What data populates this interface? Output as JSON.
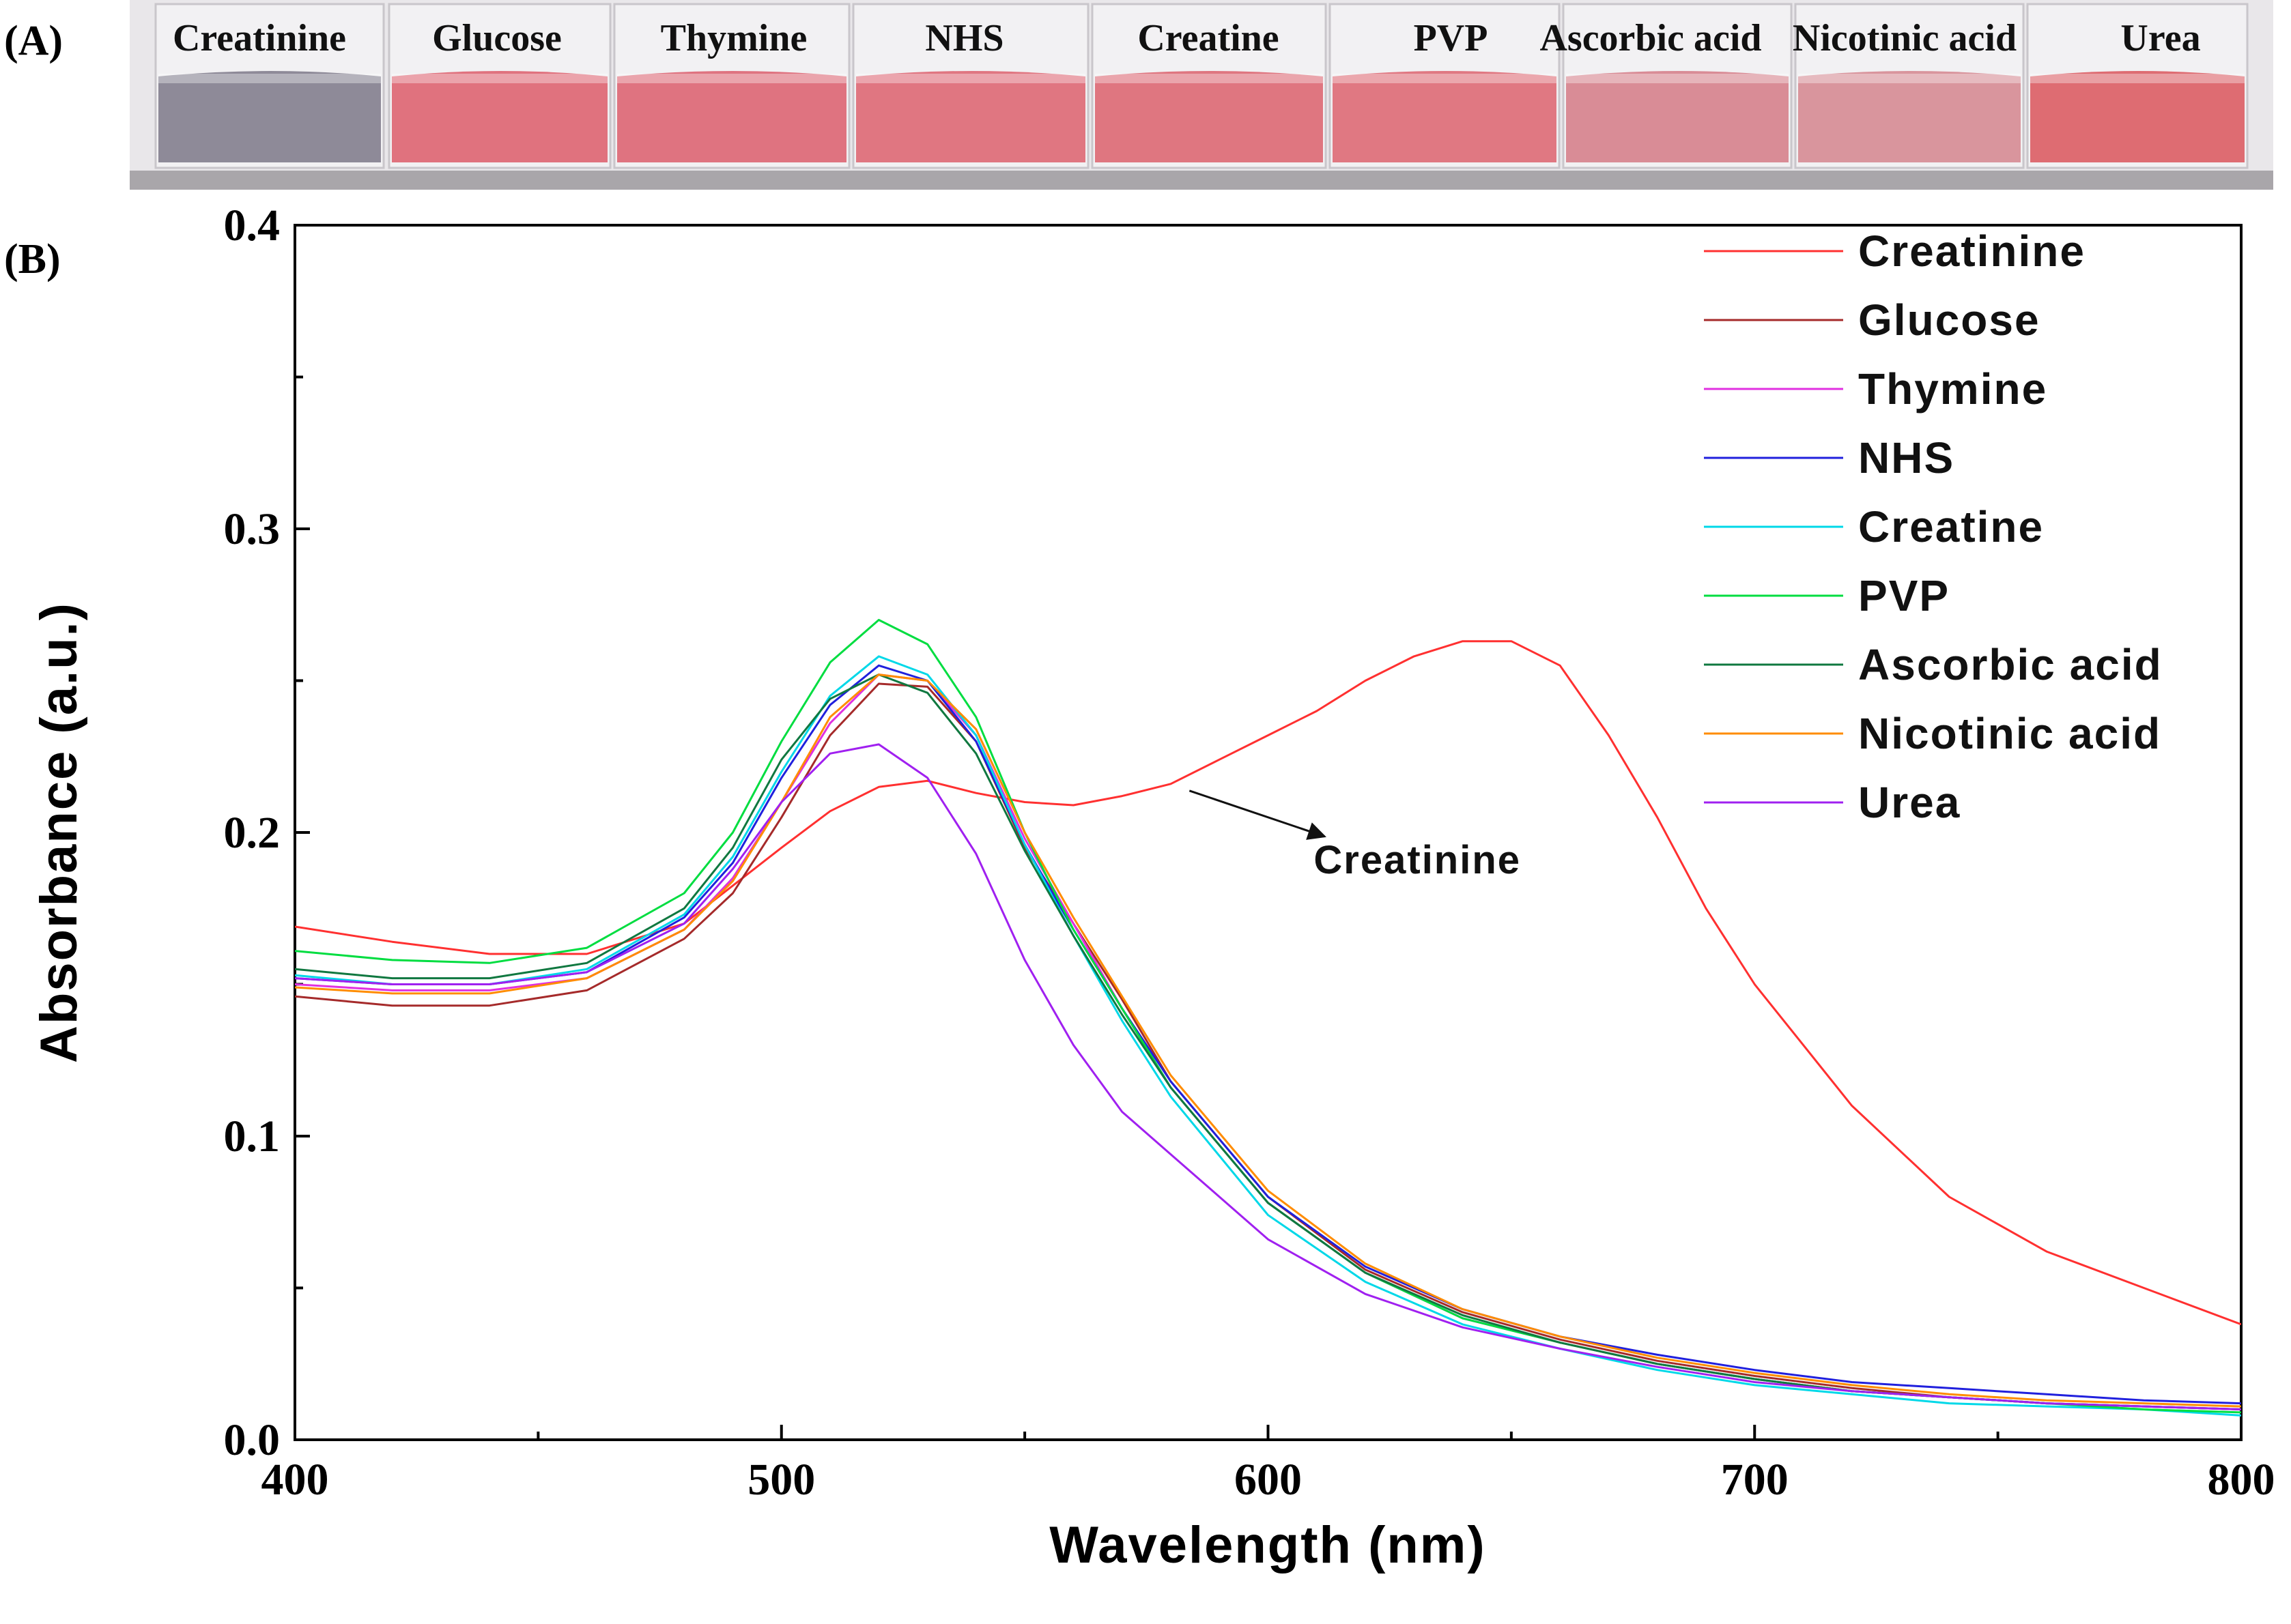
{
  "panel_a": {
    "label": "(A)",
    "vials": [
      {
        "name": "Creatinine",
        "color": "#8e8a98"
      },
      {
        "name": "Glucose",
        "color": "#e0727e"
      },
      {
        "name": "Thymine",
        "color": "#df7380"
      },
      {
        "name": "NHS",
        "color": "#e07681"
      },
      {
        "name": "Creatine",
        "color": "#df7680"
      },
      {
        "name": "PVP",
        "color": "#e07882"
      },
      {
        "name": "Ascorbic acid",
        "color": "#d98c96"
      },
      {
        "name": "Nicotinic acid",
        "color": "#d9959d"
      },
      {
        "name": "Urea",
        "color": "#de6c72"
      }
    ]
  },
  "chart_data": {
    "type": "line",
    "panel_label": "(B)",
    "xlabel": "Wavelength (nm)",
    "ylabel": "Absorbance (a.u.)",
    "xlim": [
      400,
      800
    ],
    "ylim": [
      0.0,
      0.4
    ],
    "xticks": [
      400,
      500,
      600,
      700,
      800
    ],
    "yticks": [
      0.0,
      0.1,
      0.2,
      0.3,
      0.4
    ],
    "ytick_labels": [
      "0.0",
      "0.1",
      "0.2",
      "0.3",
      "0.4"
    ],
    "legend_position": "top-right",
    "annotation": {
      "text": "Creatinine",
      "target": [
        583,
        0.216
      ],
      "text_at": [
        615,
        0.187
      ]
    },
    "series": [
      {
        "name": "Creatinine",
        "color": "#ff3030",
        "x": [
          400,
          420,
          440,
          460,
          480,
          500,
          510,
          520,
          530,
          540,
          550,
          560,
          570,
          580,
          590,
          600,
          610,
          620,
          630,
          640,
          650,
          660,
          670,
          680,
          690,
          700,
          720,
          740,
          760,
          780,
          800
        ],
        "y": [
          0.169,
          0.164,
          0.16,
          0.16,
          0.17,
          0.195,
          0.207,
          0.215,
          0.217,
          0.213,
          0.21,
          0.209,
          0.212,
          0.216,
          0.224,
          0.232,
          0.24,
          0.25,
          0.258,
          0.263,
          0.263,
          0.255,
          0.232,
          0.205,
          0.175,
          0.15,
          0.11,
          0.08,
          0.062,
          0.05,
          0.038
        ]
      },
      {
        "name": "Glucose",
        "color": "#a52a2a",
        "x": [
          400,
          420,
          440,
          460,
          480,
          490,
          500,
          510,
          520,
          530,
          540,
          550,
          560,
          570,
          580,
          600,
          620,
          640,
          660,
          680,
          700,
          720,
          740,
          760,
          780,
          800
        ],
        "y": [
          0.146,
          0.143,
          0.143,
          0.148,
          0.165,
          0.18,
          0.205,
          0.232,
          0.249,
          0.248,
          0.23,
          0.195,
          0.17,
          0.145,
          0.118,
          0.08,
          0.056,
          0.042,
          0.033,
          0.026,
          0.021,
          0.017,
          0.014,
          0.012,
          0.011,
          0.01
        ]
      },
      {
        "name": "Thymine",
        "color": "#e030e0",
        "x": [
          400,
          420,
          440,
          460,
          480,
          490,
          500,
          510,
          520,
          530,
          540,
          550,
          560,
          570,
          580,
          600,
          620,
          640,
          660,
          680,
          700,
          720,
          740,
          760,
          780,
          800
        ],
        "y": [
          0.15,
          0.148,
          0.148,
          0.152,
          0.168,
          0.185,
          0.21,
          0.236,
          0.252,
          0.25,
          0.232,
          0.198,
          0.17,
          0.142,
          0.116,
          0.078,
          0.055,
          0.04,
          0.032,
          0.025,
          0.02,
          0.016,
          0.014,
          0.012,
          0.011,
          0.01
        ]
      },
      {
        "name": "NHS",
        "color": "#2020dd",
        "x": [
          400,
          420,
          440,
          460,
          480,
          490,
          500,
          510,
          520,
          530,
          540,
          550,
          560,
          570,
          580,
          600,
          620,
          640,
          660,
          680,
          700,
          720,
          740,
          760,
          780,
          800
        ],
        "y": [
          0.152,
          0.15,
          0.15,
          0.154,
          0.172,
          0.19,
          0.218,
          0.242,
          0.255,
          0.25,
          0.23,
          0.196,
          0.168,
          0.142,
          0.118,
          0.08,
          0.057,
          0.043,
          0.034,
          0.028,
          0.023,
          0.019,
          0.017,
          0.015,
          0.013,
          0.012
        ]
      },
      {
        "name": "Creatine",
        "color": "#00d8e8",
        "x": [
          400,
          420,
          440,
          460,
          480,
          490,
          500,
          510,
          520,
          530,
          540,
          550,
          560,
          570,
          580,
          600,
          620,
          640,
          660,
          680,
          700,
          720,
          740,
          760,
          780,
          800
        ],
        "y": [
          0.153,
          0.15,
          0.15,
          0.155,
          0.173,
          0.192,
          0.22,
          0.245,
          0.258,
          0.252,
          0.232,
          0.196,
          0.166,
          0.138,
          0.113,
          0.074,
          0.052,
          0.038,
          0.03,
          0.023,
          0.018,
          0.015,
          0.012,
          0.011,
          0.01,
          0.008
        ]
      },
      {
        "name": "PVP",
        "color": "#00dd40",
        "x": [
          400,
          420,
          440,
          460,
          480,
          490,
          500,
          510,
          520,
          530,
          540,
          550,
          560,
          570,
          580,
          600,
          620,
          640,
          660,
          680,
          700,
          720,
          740,
          760,
          780,
          800
        ],
        "y": [
          0.161,
          0.158,
          0.157,
          0.162,
          0.18,
          0.2,
          0.23,
          0.256,
          0.27,
          0.262,
          0.238,
          0.2,
          0.168,
          0.142,
          0.116,
          0.078,
          0.055,
          0.04,
          0.032,
          0.025,
          0.02,
          0.016,
          0.014,
          0.012,
          0.01,
          0.009
        ]
      },
      {
        "name": "Ascorbic acid",
        "color": "#107840",
        "x": [
          400,
          420,
          440,
          460,
          480,
          490,
          500,
          510,
          520,
          530,
          540,
          550,
          560,
          570,
          580,
          600,
          620,
          640,
          660,
          680,
          700,
          720,
          740,
          760,
          780,
          800
        ],
        "y": [
          0.155,
          0.152,
          0.152,
          0.157,
          0.175,
          0.195,
          0.224,
          0.244,
          0.252,
          0.246,
          0.226,
          0.194,
          0.166,
          0.14,
          0.116,
          0.078,
          0.055,
          0.041,
          0.032,
          0.025,
          0.02,
          0.016,
          0.014,
          0.012,
          0.011,
          0.01
        ]
      },
      {
        "name": "Nicotinic acid",
        "color": "#ff8c00",
        "x": [
          400,
          420,
          440,
          460,
          480,
          490,
          500,
          510,
          520,
          530,
          540,
          550,
          560,
          570,
          580,
          600,
          620,
          640,
          660,
          680,
          700,
          720,
          740,
          760,
          780,
          800
        ],
        "y": [
          0.149,
          0.147,
          0.147,
          0.152,
          0.168,
          0.184,
          0.21,
          0.238,
          0.252,
          0.25,
          0.234,
          0.2,
          0.172,
          0.146,
          0.12,
          0.082,
          0.058,
          0.043,
          0.034,
          0.027,
          0.022,
          0.018,
          0.015,
          0.013,
          0.012,
          0.011
        ]
      },
      {
        "name": "Urea",
        "color": "#a020f0",
        "x": [
          400,
          420,
          440,
          460,
          480,
          490,
          500,
          510,
          520,
          530,
          540,
          550,
          560,
          570,
          580,
          600,
          620,
          640,
          660,
          680,
          700,
          720,
          740,
          760,
          780,
          800
        ],
        "y": [
          0.152,
          0.15,
          0.15,
          0.154,
          0.17,
          0.188,
          0.21,
          0.226,
          0.229,
          0.218,
          0.193,
          0.158,
          0.13,
          0.108,
          0.094,
          0.066,
          0.048,
          0.037,
          0.03,
          0.024,
          0.019,
          0.016,
          0.014,
          0.012,
          0.011,
          0.01
        ]
      }
    ]
  }
}
